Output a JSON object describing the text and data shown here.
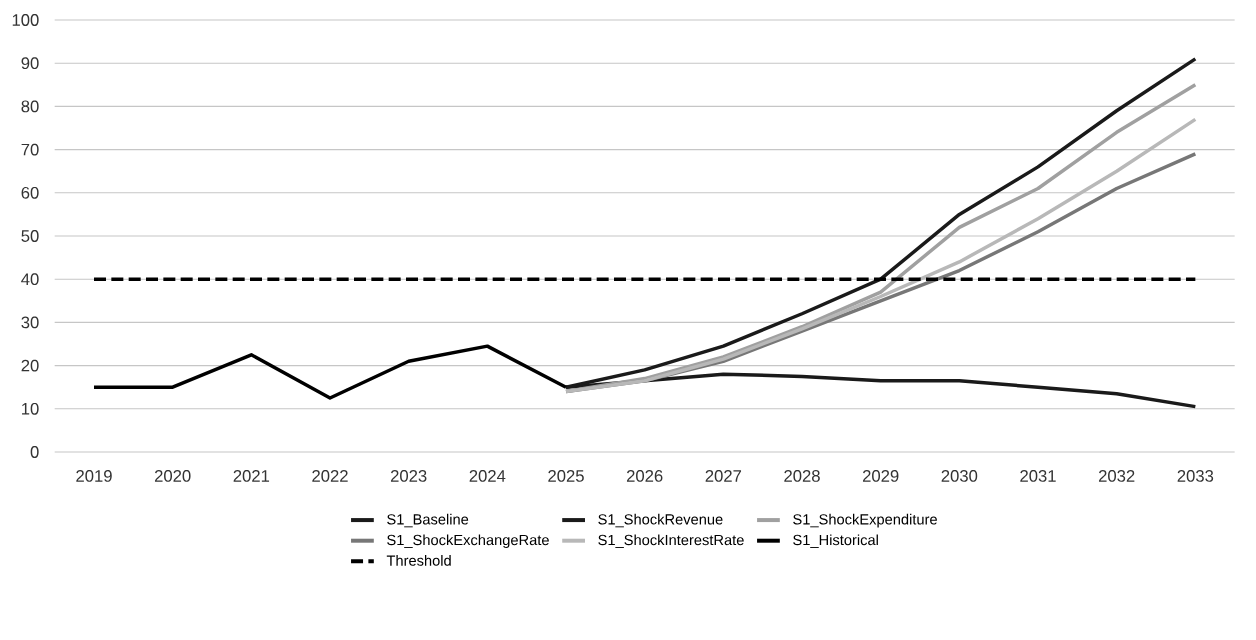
{
  "chart_data": {
    "type": "line",
    "categories": [
      "2019",
      "2020",
      "2021",
      "2022",
      "2023",
      "2024",
      "2025",
      "2026",
      "2027",
      "2028",
      "2029",
      "2030",
      "2031",
      "2032",
      "2033"
    ],
    "series": [
      {
        "name": "S1_Baseline",
        "color": "#1a1a1a",
        "values": [
          null,
          null,
          null,
          null,
          null,
          null,
          15,
          16.5,
          18,
          17.5,
          16.5,
          16.5,
          15,
          13.5,
          10.5
        ]
      },
      {
        "name": "S1_ShockRevenue",
        "color": "#1a1a1a",
        "values": [
          null,
          null,
          null,
          null,
          null,
          null,
          15,
          19,
          24.5,
          32,
          40,
          55,
          66,
          79,
          91
        ]
      },
      {
        "name": "S1_ShockExpenditure",
        "color": "#a0a0a0",
        "values": [
          null,
          null,
          null,
          null,
          null,
          null,
          14,
          17,
          22,
          29,
          37,
          52,
          61,
          74,
          85
        ]
      },
      {
        "name": "S1_ShockExchangeRate",
        "color": "#777777",
        "values": [
          null,
          null,
          null,
          null,
          null,
          null,
          14,
          16.5,
          21,
          28,
          35,
          42,
          51,
          61,
          69
        ]
      },
      {
        "name": "S1_ShockInterestRate",
        "color": "#b8b8b8",
        "values": [
          null,
          null,
          null,
          null,
          null,
          null,
          14,
          16.5,
          21.5,
          28.5,
          36,
          44,
          54,
          65,
          77
        ]
      },
      {
        "name": "S1_Historical",
        "color": "#000000",
        "values": [
          15,
          15,
          22.5,
          12.5,
          21,
          24.5,
          15,
          null,
          null,
          null,
          null,
          null,
          null,
          null,
          null
        ]
      },
      {
        "name": "Threshold",
        "color": "#000000",
        "line_style": "dashed",
        "values": [
          40,
          40,
          40,
          40,
          40,
          40,
          40,
          40,
          40,
          40,
          40,
          40,
          40,
          40,
          40
        ]
      }
    ],
    "ylim": [
      0,
      100
    ],
    "yticks": [
      0,
      10,
      20,
      30,
      40,
      50,
      60,
      70,
      80,
      90,
      100
    ],
    "grid": "y",
    "legend": "bottom",
    "marker": "none",
    "line_style": "solid"
  }
}
